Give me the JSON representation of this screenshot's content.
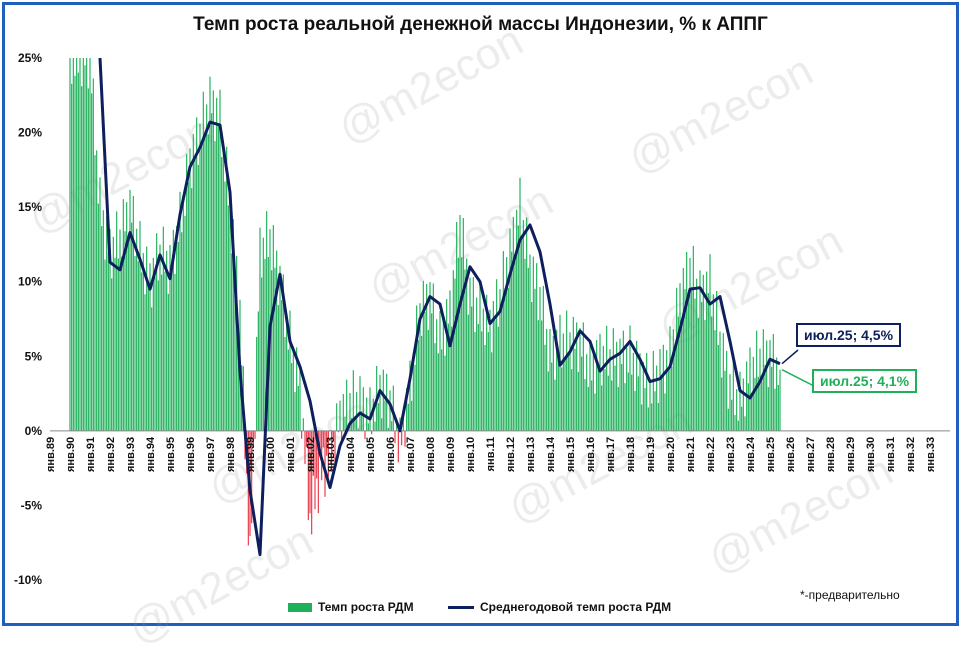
{
  "watermark": "@m2econ",
  "note": "*-предварительно",
  "chart_data": {
    "type": "bar",
    "title": "Темп роста реальной денежной массы Индонезии, % к АППГ",
    "ylim": [
      -10,
      25
    ],
    "yticks": [
      -10,
      -5,
      0,
      5,
      10,
      15,
      20,
      25
    ],
    "ytick_labels": [
      "-10%",
      "-5%",
      "0%",
      "5%",
      "10%",
      "15%",
      "20%",
      "25%"
    ],
    "x_labels": [
      "янв.89",
      "янв.90",
      "янв.91",
      "янв.92",
      "янв.93",
      "янв.94",
      "янв.95",
      "янв.96",
      "янв.97",
      "янв.98",
      "янв.99",
      "янв.00",
      "янв.01",
      "янв.02",
      "янв.03",
      "янв.04",
      "янв.05",
      "янв.06",
      "янв.07",
      "янв.08",
      "янв.09",
      "янв.10",
      "янв.11",
      "янв.12",
      "янв.13",
      "янв.14",
      "янв.15",
      "янв.16",
      "янв.17",
      "янв.18",
      "янв.19",
      "янв.20",
      "янв.21",
      "янв.22",
      "янв.23",
      "янв.24",
      "янв.25",
      "янв.26",
      "янв.27",
      "янв.28",
      "янв.29",
      "янв.30",
      "янв.31",
      "янв.32",
      "янв.33"
    ],
    "x_range": [
      1989.0,
      2034.0
    ],
    "grid": false,
    "legend_position": "bottom",
    "series": [
      {
        "name": "Темп роста РДМ",
        "kind": "bar",
        "color": "#21b05a",
        "negative_color": "#e8394a",
        "points": [
          [
            1990.0,
            25
          ],
          [
            1991.0,
            25
          ],
          [
            1991.5,
            15
          ],
          [
            1992.0,
            12
          ],
          [
            1992.5,
            13
          ],
          [
            1993.0,
            15
          ],
          [
            1993.5,
            12
          ],
          [
            1994.0,
            10
          ],
          [
            1994.5,
            12
          ],
          [
            1995.0,
            11
          ],
          [
            1995.5,
            14
          ],
          [
            1996.0,
            18
          ],
          [
            1996.5,
            20
          ],
          [
            1997.0,
            22
          ],
          [
            1997.5,
            21
          ],
          [
            1998.0,
            15
          ],
          [
            1998.5,
            8
          ],
          [
            1999.0,
            -9
          ],
          [
            1999.5,
            12
          ],
          [
            2000.0,
            13
          ],
          [
            2000.5,
            10
          ],
          [
            2001.0,
            6
          ],
          [
            2001.5,
            3
          ],
          [
            2002.0,
            -6
          ],
          [
            2002.5,
            -3
          ],
          [
            2003.0,
            -2
          ],
          [
            2003.5,
            1
          ],
          [
            2004.0,
            2
          ],
          [
            2004.5,
            2
          ],
          [
            2005.0,
            1
          ],
          [
            2005.5,
            3
          ],
          [
            2006.0,
            2
          ],
          [
            2006.5,
            -1
          ],
          [
            2007.0,
            3
          ],
          [
            2007.5,
            8
          ],
          [
            2008.0,
            9
          ],
          [
            2008.5,
            6
          ],
          [
            2009.0,
            8
          ],
          [
            2009.5,
            14
          ],
          [
            2010.0,
            9
          ],
          [
            2010.5,
            8
          ],
          [
            2011.0,
            7
          ],
          [
            2011.5,
            9
          ],
          [
            2012.0,
            12
          ],
          [
            2012.5,
            15
          ],
          [
            2013.0,
            11
          ],
          [
            2013.5,
            9
          ],
          [
            2014.0,
            5
          ],
          [
            2014.5,
            6
          ],
          [
            2015.0,
            6
          ],
          [
            2015.5,
            6
          ],
          [
            2016.0,
            4
          ],
          [
            2016.5,
            5
          ],
          [
            2017.0,
            5
          ],
          [
            2017.5,
            5
          ],
          [
            2018.0,
            5
          ],
          [
            2018.5,
            4
          ],
          [
            2019.0,
            3
          ],
          [
            2019.5,
            4
          ],
          [
            2020.0,
            5
          ],
          [
            2020.5,
            9
          ],
          [
            2021.0,
            11
          ],
          [
            2021.5,
            9
          ],
          [
            2022.0,
            10
          ],
          [
            2022.5,
            6
          ],
          [
            2023.0,
            3
          ],
          [
            2023.5,
            2
          ],
          [
            2024.0,
            4
          ],
          [
            2024.5,
            5
          ],
          [
            2025.0,
            5
          ],
          [
            2025.5,
            4.1
          ]
        ]
      },
      {
        "name": "Среднегодовой темп роста РДМ",
        "kind": "line",
        "color": "#0d1f5c",
        "points": [
          [
            1991.5,
            25
          ],
          [
            1992.0,
            11.3
          ],
          [
            1992.5,
            10.8
          ],
          [
            1993.0,
            13.3
          ],
          [
            1993.5,
            11.5
          ],
          [
            1994.0,
            9.5
          ],
          [
            1994.5,
            11.8
          ],
          [
            1995.0,
            10.2
          ],
          [
            1995.5,
            14.5
          ],
          [
            1996.0,
            17.7
          ],
          [
            1996.5,
            19.0
          ],
          [
            1997.0,
            20.7
          ],
          [
            1997.5,
            20.5
          ],
          [
            1998.0,
            16.0
          ],
          [
            1998.5,
            4.0
          ],
          [
            1999.0,
            -4.0
          ],
          [
            1999.5,
            -8.3
          ],
          [
            2000.0,
            7.0
          ],
          [
            2000.5,
            10.5
          ],
          [
            2001.0,
            6.0
          ],
          [
            2001.5,
            4.3
          ],
          [
            2002.0,
            2.0
          ],
          [
            2002.5,
            -1.5
          ],
          [
            2003.0,
            -3.8
          ],
          [
            2003.5,
            -1.0
          ],
          [
            2004.0,
            0.5
          ],
          [
            2004.5,
            1.2
          ],
          [
            2005.0,
            0.8
          ],
          [
            2005.5,
            2.7
          ],
          [
            2006.0,
            1.8
          ],
          [
            2006.5,
            0.0
          ],
          [
            2007.0,
            3.5
          ],
          [
            2007.5,
            7.5
          ],
          [
            2008.0,
            9.0
          ],
          [
            2008.5,
            8.5
          ],
          [
            2009.0,
            5.7
          ],
          [
            2009.5,
            8.5
          ],
          [
            2010.0,
            11.0
          ],
          [
            2010.5,
            10.0
          ],
          [
            2011.0,
            7.2
          ],
          [
            2011.5,
            8.0
          ],
          [
            2012.0,
            10.5
          ],
          [
            2012.5,
            12.8
          ],
          [
            2013.0,
            13.8
          ],
          [
            2013.5,
            12.0
          ],
          [
            2014.0,
            8.5
          ],
          [
            2014.5,
            4.4
          ],
          [
            2015.0,
            5.3
          ],
          [
            2015.5,
            6.7
          ],
          [
            2016.0,
            6.0
          ],
          [
            2016.5,
            4.0
          ],
          [
            2017.0,
            4.8
          ],
          [
            2017.5,
            5.2
          ],
          [
            2018.0,
            6.0
          ],
          [
            2018.5,
            4.8
          ],
          [
            2019.0,
            3.3
          ],
          [
            2019.5,
            3.5
          ],
          [
            2020.0,
            4.3
          ],
          [
            2020.5,
            6.8
          ],
          [
            2021.0,
            9.5
          ],
          [
            2021.5,
            9.6
          ],
          [
            2022.0,
            8.5
          ],
          [
            2022.5,
            9.0
          ],
          [
            2023.0,
            6.0
          ],
          [
            2023.5,
            2.7
          ],
          [
            2024.0,
            2.2
          ],
          [
            2024.5,
            3.3
          ],
          [
            2025.0,
            4.8
          ],
          [
            2025.5,
            4.5
          ]
        ]
      }
    ],
    "annotations": [
      {
        "text": "июл.25; 4,5%",
        "series": "Среднегодовой темп роста РДМ",
        "x": 2025.5,
        "y": 4.5
      },
      {
        "text": "июл.25; 4,1%",
        "series": "Темп роста РДМ",
        "x": 2025.5,
        "y": 4.1
      }
    ]
  }
}
